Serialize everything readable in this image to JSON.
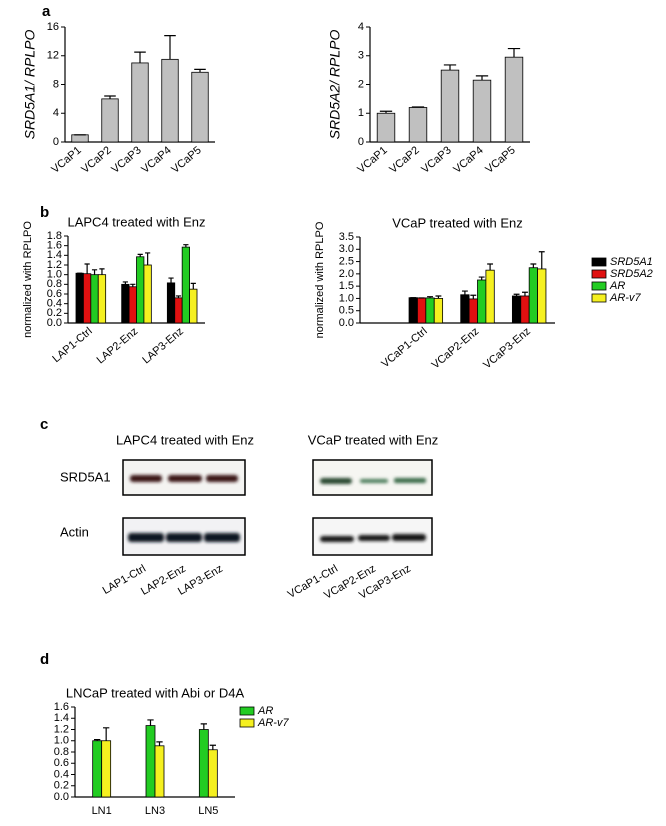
{
  "panel_labels": [
    "a",
    "b",
    "c",
    "d"
  ],
  "chart_data": [
    {
      "type": "bar",
      "ylabel": "SRD5A1/ RPLPO",
      "categories": [
        "VCaP1",
        "VCaP2",
        "VCaP3",
        "VCaP4",
        "VCaP5"
      ],
      "values": [
        1,
        6,
        11,
        11.5,
        9.7
      ],
      "errors": [
        0,
        0.4,
        1.5,
        3.3,
        0.4
      ],
      "color": "#c0c0c0",
      "ylim": [
        0,
        16
      ],
      "yticks": [
        0,
        4,
        8,
        12,
        16
      ]
    },
    {
      "type": "bar",
      "ylabel": "SRD5A2/ RPLPO",
      "categories": [
        "VCaP1",
        "VCaP2",
        "VCaP3",
        "VCaP4",
        "VCaP5"
      ],
      "values": [
        1,
        1.2,
        2.5,
        2.15,
        2.95
      ],
      "errors": [
        0.07,
        0.02,
        0.18,
        0.15,
        0.3
      ],
      "color": "#c0c0c0",
      "ylim": [
        0,
        4
      ],
      "yticks": [
        0,
        1,
        2,
        3,
        4
      ]
    },
    {
      "type": "bar",
      "title": "LAPC4 treated with Enz",
      "ylabel": "normalized with RPLPO",
      "categories": [
        "LAP1-Ctrl",
        "LAP2-Enz",
        "LAP3-Enz"
      ],
      "series": [
        {
          "name": "SRD5A1",
          "color": "#000000",
          "values": [
            1.03,
            0.8,
            0.83
          ],
          "errors": [
            0,
            0.05,
            0.1
          ]
        },
        {
          "name": "SRD5A2",
          "color": "#e01010",
          "values": [
            1.02,
            0.75,
            0.52
          ],
          "errors": [
            0.2,
            0.05,
            0.04
          ]
        },
        {
          "name": "AR",
          "color": "#22cc22",
          "values": [
            1.0,
            1.37,
            1.57
          ],
          "errors": [
            0.1,
            0.05,
            0.05
          ]
        },
        {
          "name": "AR-v7",
          "color": "#f5f020",
          "values": [
            1.0,
            1.2,
            0.7
          ],
          "errors": [
            0.12,
            0.25,
            0.12
          ]
        }
      ],
      "ylim": [
        0,
        1.8
      ],
      "yticks": [
        {
          "value": 0,
          "label": "0.0"
        },
        0.2,
        0.4,
        0.6,
        0.8,
        {
          "value": 1,
          "label": "1.0"
        },
        1.2,
        1.4,
        1.6,
        1.8
      ]
    },
    {
      "type": "bar",
      "title": "VCaP treated with Enz",
      "ylabel": "normalized with RPLPO",
      "categories": [
        "VCaP1-Ctrl",
        "VCaP2-Enz",
        "VCaP3-Enz"
      ],
      "series": [
        {
          "name": "SRD5A1",
          "color": "#000000",
          "values": [
            1.03,
            1.15,
            1.1
          ],
          "errors": [
            0,
            0.15,
            0.07
          ]
        },
        {
          "name": "SRD5A2",
          "color": "#e01010",
          "values": [
            1.02,
            0.98,
            1.1
          ],
          "errors": [
            0,
            0.15,
            0.15
          ]
        },
        {
          "name": "AR",
          "color": "#22cc22",
          "values": [
            1.02,
            1.75,
            2.25
          ],
          "errors": [
            0.05,
            0.12,
            0.15
          ]
        },
        {
          "name": "AR-v7",
          "color": "#f5f020",
          "values": [
            1.0,
            2.15,
            2.2
          ],
          "errors": [
            0.1,
            0.25,
            0.7
          ]
        }
      ],
      "ylim": [
        0,
        3.5
      ],
      "yticks": [
        {
          "value": 0,
          "label": "0.0"
        },
        0.5,
        {
          "value": 1,
          "label": "1.0"
        },
        1.5,
        {
          "value": 2,
          "label": "2.0"
        },
        2.5,
        {
          "value": 3,
          "label": "3.0"
        },
        3.5
      ],
      "legend": "right"
    },
    {
      "type": "bar",
      "title": "LNCaP treated with Abi or D4A",
      "categories": [
        "LN1",
        "LN3",
        "LN5"
      ],
      "series": [
        {
          "name": "AR",
          "color": "#22cc22",
          "values": [
            1.0,
            1.27,
            1.2
          ],
          "errors": [
            0.02,
            0.1,
            0.1
          ]
        },
        {
          "name": "AR-v7",
          "color": "#f5f020",
          "values": [
            1.0,
            0.91,
            0.84
          ],
          "errors": [
            0.23,
            0.07,
            0.08
          ]
        }
      ],
      "ylim": [
        0,
        1.6
      ],
      "yticks": [
        {
          "value": 0,
          "label": "0.0"
        },
        0.2,
        0.4,
        0.6,
        0.8,
        {
          "value": 1,
          "label": "1.0"
        },
        1.2,
        1.4,
        1.6
      ],
      "legend": "upper right"
    }
  ],
  "blots": {
    "titles": [
      "LAPC4 treated with Enz",
      "VCaP treated with Enz"
    ],
    "rows": [
      "SRD5A1",
      "Actin"
    ],
    "lanes": [
      [
        "LAP1-Ctrl",
        "LAP2-Enz",
        "LAP3-Enz"
      ],
      [
        "VCaP1-Ctrl",
        "VCaP2-Enz",
        "VCaP3-Enz"
      ]
    ]
  }
}
